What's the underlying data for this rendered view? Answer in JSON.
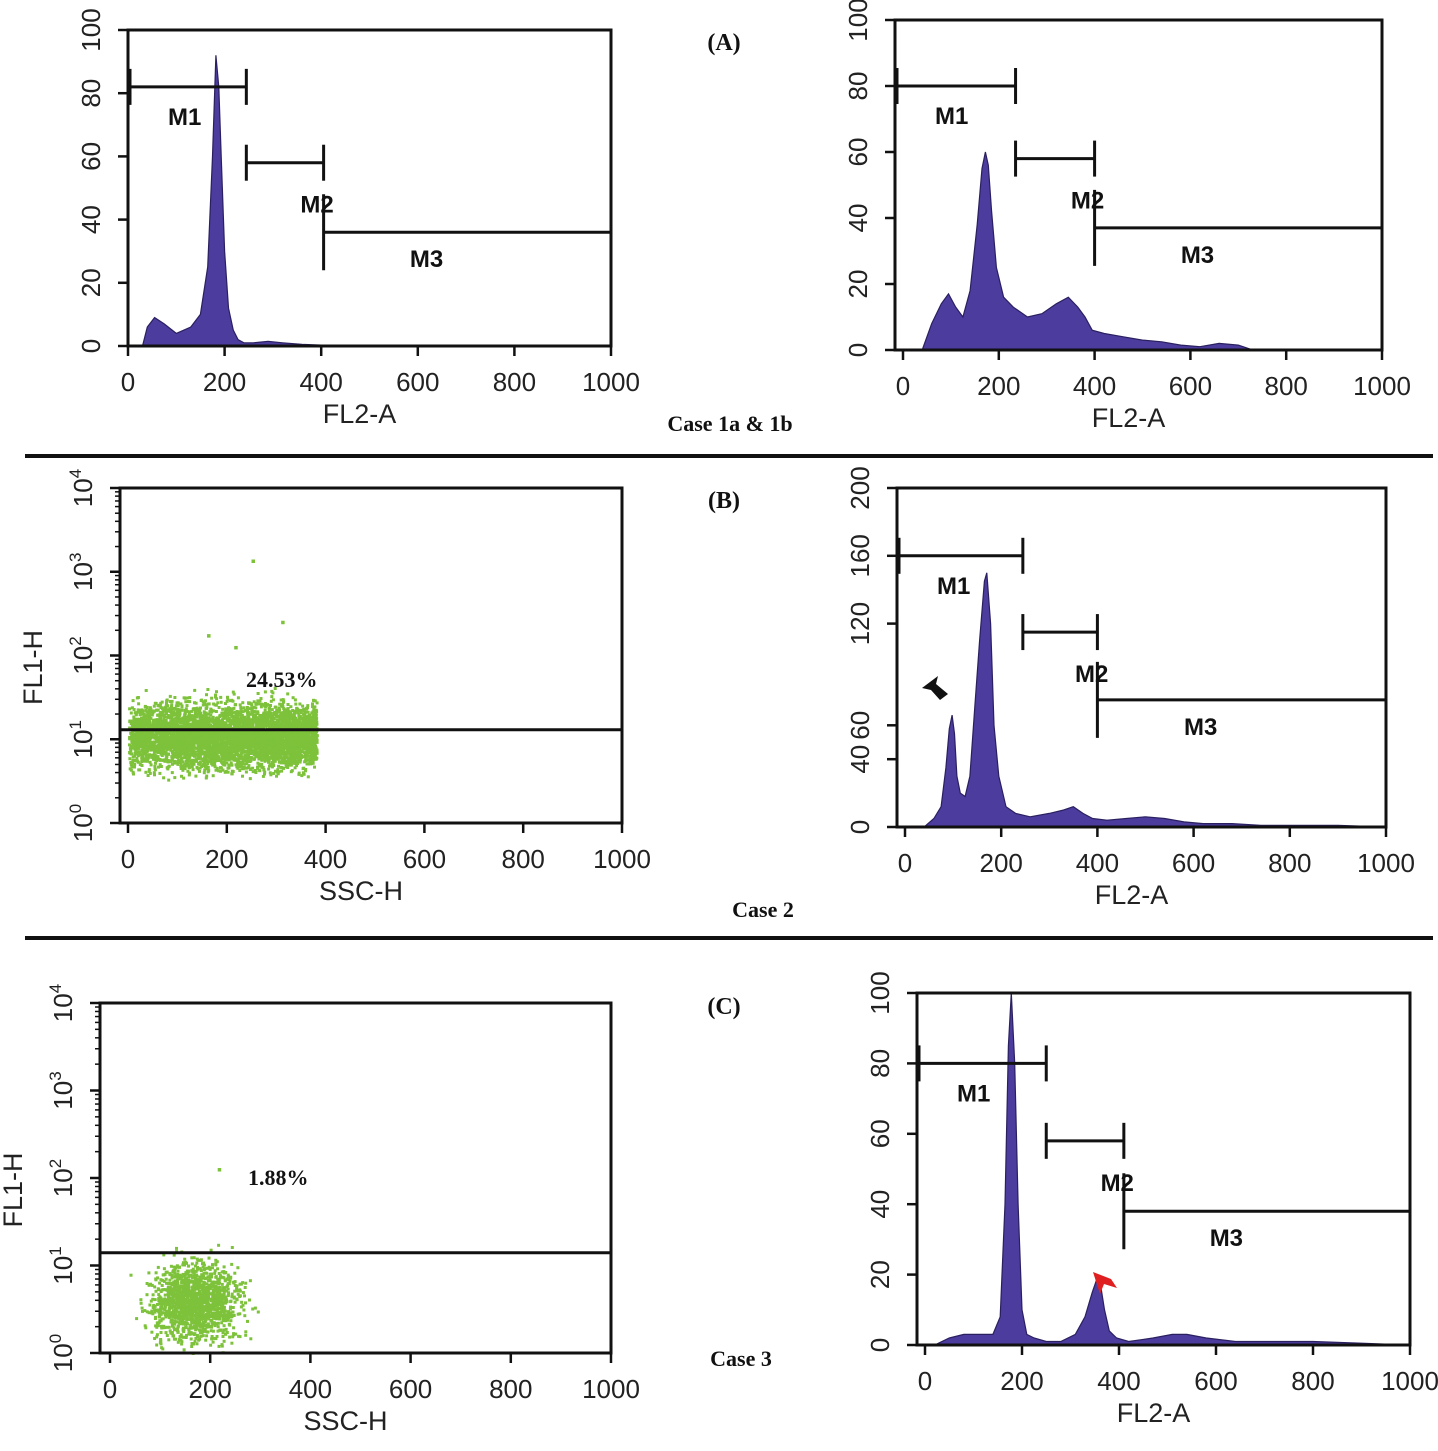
{
  "panels": [
    {
      "label": "(A)",
      "case_label": "Case 1a & 1b"
    },
    {
      "label": "(B)",
      "case_label": "Case 2"
    },
    {
      "label": "(C)",
      "case_label": "Case 3"
    }
  ],
  "colors": {
    "histogram_fill": "#4B3C9E",
    "scatter_points": "#7DC23A",
    "arrow": "#E02020",
    "frame": "#111111"
  },
  "chart_data": [
    {
      "id": "A1",
      "type": "area",
      "xlabel": "FL2-A",
      "ylabel": "",
      "xlim": [
        0,
        1000
      ],
      "ylim": [
        0,
        100
      ],
      "xticks": [
        0,
        200,
        400,
        600,
        800,
        1000
      ],
      "yticks": [
        0,
        20,
        40,
        60,
        80,
        100
      ],
      "markers": [
        {
          "label": "M1",
          "start": 0,
          "end": 245,
          "level": 82
        },
        {
          "label": "M2",
          "start": 245,
          "end": 405,
          "level": 58
        },
        {
          "label": "M3",
          "start": 405,
          "end": 1000,
          "level": 36
        }
      ],
      "series": [
        {
          "x": [
            0,
            30,
            40,
            55,
            75,
            100,
            130,
            150,
            165,
            175,
            182,
            188,
            193,
            200,
            208,
            218,
            228,
            240,
            260,
            290,
            320,
            360,
            400,
            450,
            500,
            550,
            600,
            650,
            700,
            1000
          ],
          "y": [
            0,
            0,
            6,
            9,
            7,
            4,
            6,
            10,
            25,
            60,
            92,
            82,
            60,
            30,
            12,
            5,
            2,
            1,
            1,
            1.5,
            1,
            0.5,
            0.3,
            0.2,
            0.2,
            0.1,
            0.2,
            0.1,
            0,
            0
          ]
        }
      ]
    },
    {
      "id": "A2",
      "type": "area",
      "xlabel": "FL2-A",
      "ylabel": "",
      "xlim": [
        0,
        1000
      ],
      "ylim": [
        0,
        100
      ],
      "xticks": [
        0,
        200,
        400,
        600,
        800,
        1000
      ],
      "yticks": [
        0,
        20,
        40,
        60,
        80,
        100
      ],
      "markers": [
        {
          "label": "M1",
          "start": 0,
          "end": 235,
          "level": 80
        },
        {
          "label": "M2",
          "start": 235,
          "end": 400,
          "level": 58
        },
        {
          "label": "M3",
          "start": 400,
          "end": 1000,
          "level": 37
        }
      ],
      "series": [
        {
          "x": [
            0,
            40,
            60,
            80,
            95,
            110,
            125,
            140,
            155,
            165,
            172,
            178,
            185,
            195,
            210,
            230,
            260,
            290,
            320,
            345,
            365,
            380,
            395,
            420,
            460,
            500,
            540,
            580,
            620,
            660,
            700,
            730,
            1000
          ],
          "y": [
            0,
            0,
            8,
            14,
            17,
            13,
            10,
            18,
            38,
            55,
            60,
            56,
            42,
            25,
            16,
            13,
            10,
            11,
            14,
            16,
            13,
            10,
            6,
            5,
            4,
            3,
            2.5,
            1.5,
            1,
            2,
            1.5,
            0,
            0
          ]
        }
      ]
    },
    {
      "id": "B1",
      "type": "scatter",
      "xlabel": "SSC-H",
      "ylabel": "FL1-H",
      "xlim": [
        0,
        1000
      ],
      "ylog": true,
      "ylim": [
        1,
        10000
      ],
      "xticks": [
        0,
        200,
        400,
        600,
        800,
        1000
      ],
      "yticks": [
        "10^0",
        "10^1",
        "10^2",
        "10^3",
        "10^4"
      ],
      "gate": {
        "y": 13
      },
      "annotation": "24.53%",
      "point_cloud": {
        "x_range": [
          0,
          380
        ],
        "y_range": [
          1,
          300
        ],
        "density": "dense"
      }
    },
    {
      "id": "B2",
      "type": "area",
      "xlabel": "FL2-A",
      "ylabel": "",
      "xlim": [
        0,
        1000
      ],
      "ylim": [
        0,
        200
      ],
      "xticks": [
        0,
        200,
        400,
        600,
        800,
        1000
      ],
      "yticks": [
        0,
        40,
        60,
        120,
        160,
        200
      ],
      "markers": [
        {
          "label": "M1",
          "start": 0,
          "end": 245,
          "level": 160
        },
        {
          "label": "M2",
          "start": 245,
          "end": 400,
          "level": 115
        },
        {
          "label": "M3",
          "start": 400,
          "end": 1000,
          "level": 75
        }
      ],
      "series": [
        {
          "x": [
            0,
            40,
            60,
            75,
            85,
            92,
            98,
            103,
            108,
            115,
            125,
            135,
            145,
            155,
            165,
            170,
            178,
            185,
            195,
            210,
            230,
            260,
            300,
            330,
            350,
            370,
            390,
            420,
            460,
            500,
            540,
            580,
            620,
            680,
            740,
            800,
            900,
            1000
          ],
          "y": [
            0,
            0,
            5,
            12,
            35,
            58,
            66,
            55,
            30,
            20,
            18,
            30,
            70,
            110,
            145,
            150,
            120,
            60,
            30,
            12,
            8,
            6,
            8,
            10,
            12,
            8,
            5,
            4,
            5,
            6,
            5,
            3,
            2,
            2,
            1,
            1,
            1,
            0
          ]
        }
      ]
    },
    {
      "id": "C1",
      "type": "scatter",
      "xlabel": "SSC-H",
      "ylabel": "FL1-H",
      "xlim": [
        0,
        1000
      ],
      "ylog": true,
      "ylim": [
        1,
        10000
      ],
      "xticks": [
        0,
        200,
        400,
        600,
        800,
        1000
      ],
      "yticks": [
        "10^0",
        "10^1",
        "10^2",
        "10^3",
        "10^4"
      ],
      "gate": {
        "y": 14
      },
      "annotation": "1.88%",
      "point_cloud": {
        "x_range": [
          0,
          380
        ],
        "y_range": [
          1,
          130
        ],
        "density": "sparse"
      }
    },
    {
      "id": "C2",
      "type": "area",
      "xlabel": "FL2-A",
      "ylabel": "",
      "xlim": [
        0,
        1000
      ],
      "ylim": [
        0,
        100
      ],
      "xticks": [
        0,
        200,
        400,
        600,
        800,
        1000
      ],
      "yticks": [
        0,
        20,
        40,
        60,
        80,
        100
      ],
      "markers": [
        {
          "label": "M1",
          "start": 0,
          "end": 250,
          "level": 80
        },
        {
          "label": "M2",
          "start": 250,
          "end": 410,
          "level": 58
        },
        {
          "label": "M3",
          "start": 410,
          "end": 1000,
          "level": 38
        }
      ],
      "series": [
        {
          "x": [
            0,
            20,
            50,
            80,
            110,
            140,
            155,
            165,
            172,
            178,
            185,
            192,
            200,
            210,
            225,
            250,
            280,
            310,
            330,
            345,
            355,
            362,
            370,
            380,
            395,
            420,
            470,
            510,
            540,
            580,
            640,
            700,
            800,
            900,
            1000
          ],
          "y": [
            0,
            0,
            2,
            3,
            3,
            3,
            8,
            40,
            85,
            100,
            80,
            40,
            10,
            3,
            2,
            1,
            1,
            3,
            8,
            15,
            19,
            17,
            10,
            4,
            2,
            1,
            2,
            3,
            3,
            2,
            1,
            1,
            1,
            0.5,
            0
          ]
        }
      ]
    }
  ]
}
